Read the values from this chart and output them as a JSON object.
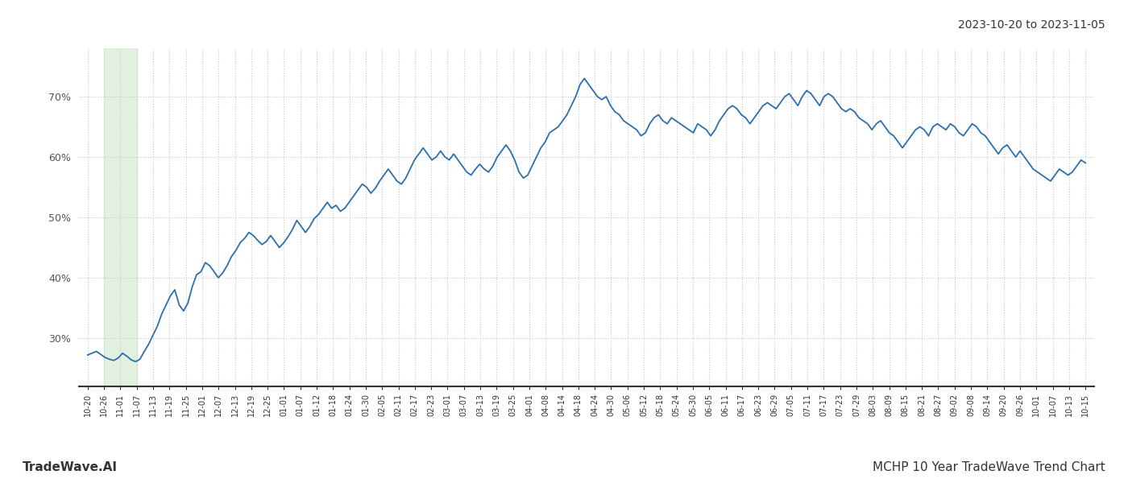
{
  "title_right": "2023-10-20 to 2023-11-05",
  "footer_left": "TradeWave.AI",
  "footer_right": "MCHP 10 Year TradeWave Trend Chart",
  "line_color": "#2c6fad",
  "line_width": 1.3,
  "highlight_color": "#d6ecd2",
  "highlight_alpha": 0.7,
  "background_color": "#ffffff",
  "grid_color": "#c8c8c8",
  "ylim": [
    22,
    78
  ],
  "yticks": [
    30,
    40,
    50,
    60,
    70
  ],
  "x_labels": [
    "10-20",
    "10-26",
    "11-01",
    "11-07",
    "11-13",
    "11-19",
    "11-25",
    "12-01",
    "12-07",
    "12-13",
    "12-19",
    "12-25",
    "01-01",
    "01-07",
    "01-12",
    "01-18",
    "01-24",
    "01-30",
    "02-05",
    "02-11",
    "02-17",
    "02-23",
    "03-01",
    "03-07",
    "03-13",
    "03-19",
    "03-25",
    "04-01",
    "04-08",
    "04-14",
    "04-18",
    "04-24",
    "04-30",
    "05-06",
    "05-12",
    "05-18",
    "05-24",
    "05-30",
    "06-05",
    "06-11",
    "06-17",
    "06-23",
    "06-29",
    "07-05",
    "07-11",
    "07-17",
    "07-23",
    "07-29",
    "08-03",
    "08-09",
    "08-15",
    "08-21",
    "08-27",
    "09-02",
    "09-08",
    "09-14",
    "09-20",
    "09-26",
    "10-01",
    "10-07",
    "10-13",
    "10-15"
  ],
  "highlight_label_start": "10-26",
  "highlight_label_end": "11-07",
  "y_values": [
    27.2,
    27.5,
    27.8,
    27.3,
    26.8,
    26.5,
    26.3,
    26.7,
    27.5,
    27.0,
    26.4,
    26.1,
    26.5,
    27.8,
    29.0,
    30.5,
    32.0,
    34.0,
    35.5,
    37.0,
    38.0,
    35.5,
    34.5,
    35.8,
    38.5,
    40.5,
    41.0,
    42.5,
    42.0,
    41.0,
    40.0,
    40.8,
    42.0,
    43.5,
    44.5,
    45.8,
    46.5,
    47.5,
    47.0,
    46.2,
    45.5,
    46.0,
    47.0,
    46.0,
    45.0,
    45.8,
    46.8,
    48.0,
    49.5,
    48.5,
    47.5,
    48.5,
    49.8,
    50.5,
    51.5,
    52.5,
    51.5,
    52.0,
    51.0,
    51.5,
    52.5,
    53.5,
    54.5,
    55.5,
    55.0,
    54.0,
    54.8,
    56.0,
    57.0,
    58.0,
    57.0,
    56.0,
    55.5,
    56.5,
    58.0,
    59.5,
    60.5,
    61.5,
    60.5,
    59.5,
    60.0,
    61.0,
    60.0,
    59.5,
    60.5,
    59.5,
    58.5,
    57.5,
    57.0,
    58.0,
    58.8,
    58.0,
    57.5,
    58.5,
    60.0,
    61.0,
    62.0,
    61.0,
    59.5,
    57.5,
    56.5,
    57.0,
    58.5,
    60.0,
    61.5,
    62.5,
    64.0,
    64.5,
    65.0,
    66.0,
    67.0,
    68.5,
    70.0,
    72.0,
    73.0,
    72.0,
    71.0,
    70.0,
    69.5,
    70.0,
    68.5,
    67.5,
    67.0,
    66.0,
    65.5,
    65.0,
    64.5,
    63.5,
    64.0,
    65.5,
    66.5,
    67.0,
    66.0,
    65.5,
    66.5,
    66.0,
    65.5,
    65.0,
    64.5,
    64.0,
    65.5,
    65.0,
    64.5,
    63.5,
    64.5,
    66.0,
    67.0,
    68.0,
    68.5,
    68.0,
    67.0,
    66.5,
    65.5,
    66.5,
    67.5,
    68.5,
    69.0,
    68.5,
    68.0,
    69.0,
    70.0,
    70.5,
    69.5,
    68.5,
    70.0,
    71.0,
    70.5,
    69.5,
    68.5,
    70.0,
    70.5,
    70.0,
    69.0,
    68.0,
    67.5,
    68.0,
    67.5,
    66.5,
    66.0,
    65.5,
    64.5,
    65.5,
    66.0,
    65.0,
    64.0,
    63.5,
    62.5,
    61.5,
    62.5,
    63.5,
    64.5,
    65.0,
    64.5,
    63.5,
    65.0,
    65.5,
    65.0,
    64.5,
    65.5,
    65.0,
    64.0,
    63.5,
    64.5,
    65.5,
    65.0,
    64.0,
    63.5,
    62.5,
    61.5,
    60.5,
    61.5,
    62.0,
    61.0,
    60.0,
    61.0,
    60.0,
    59.0,
    58.0,
    57.5,
    57.0,
    56.5,
    56.0,
    57.0,
    58.0,
    57.5,
    57.0,
    57.5,
    58.5,
    59.5,
    59.0
  ]
}
